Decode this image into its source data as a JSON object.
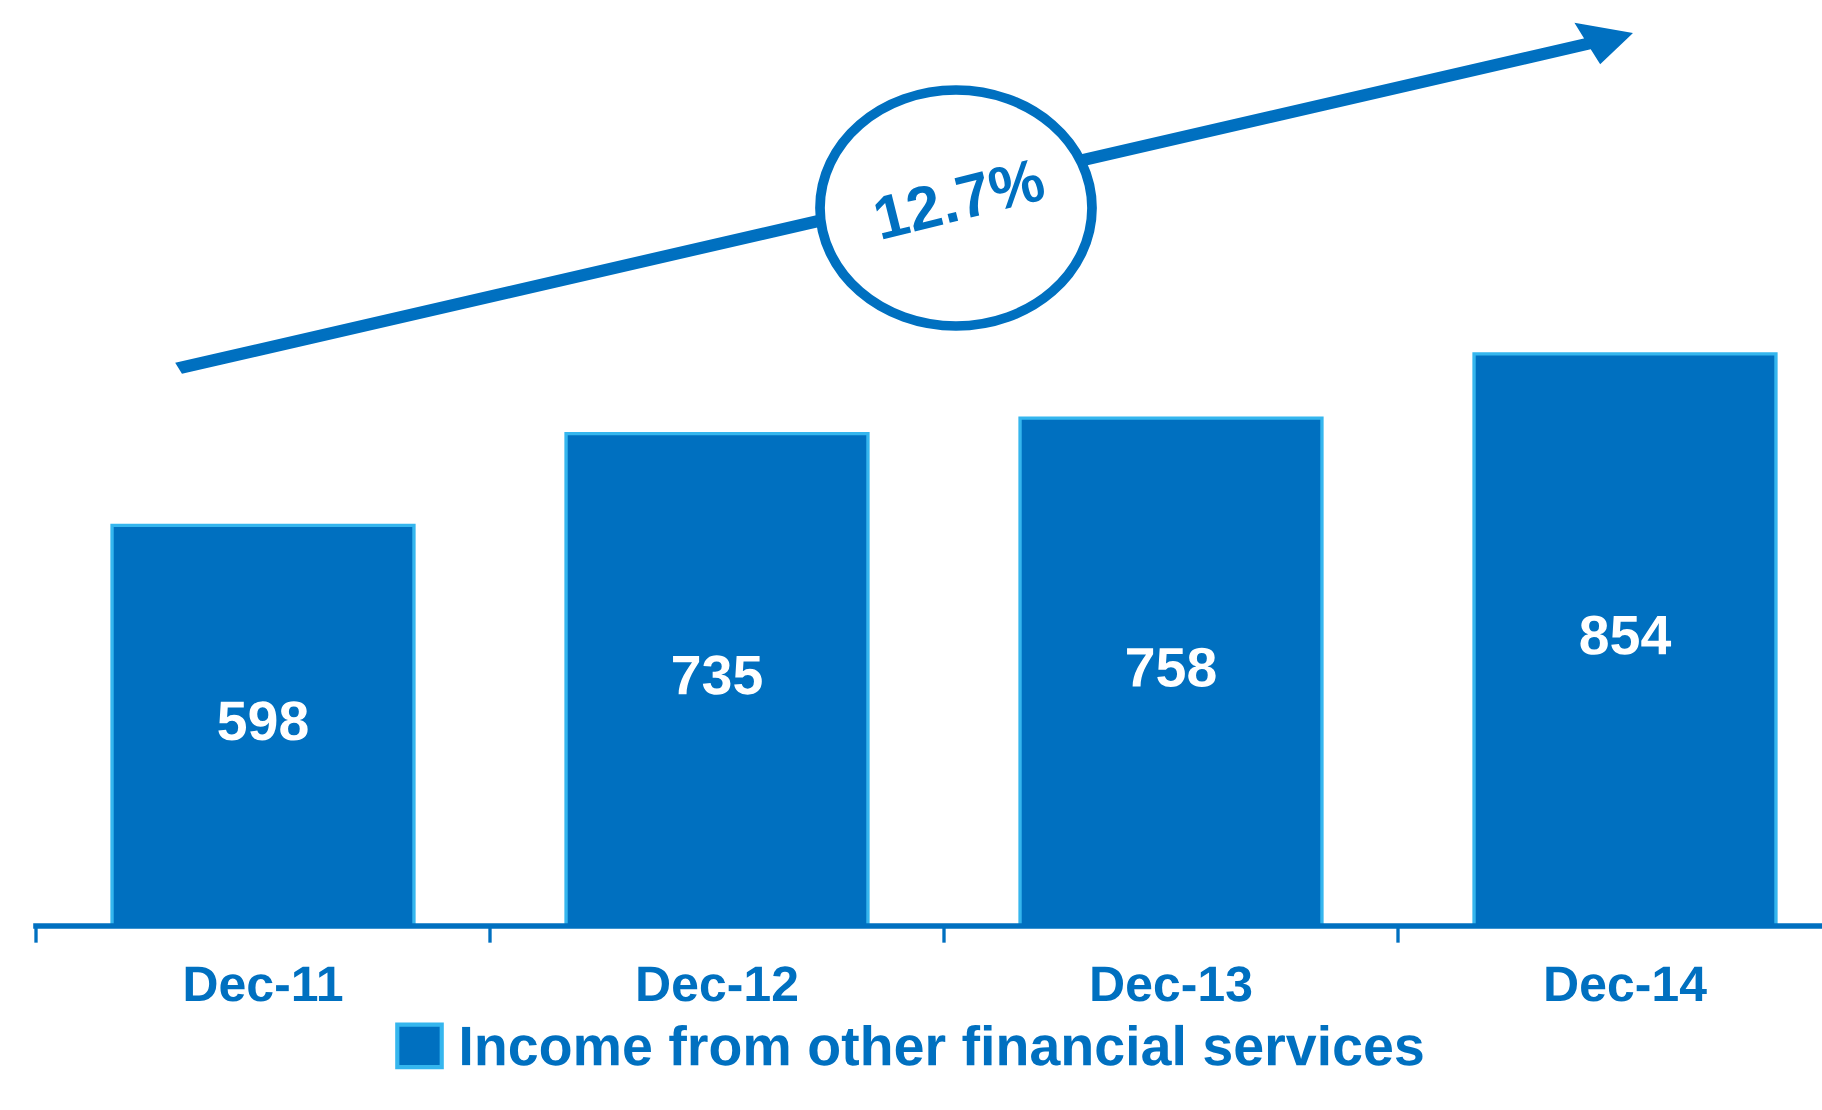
{
  "chart_data": {
    "type": "bar",
    "categories": [
      "Dec-11",
      "Dec-12",
      "Dec-13",
      "Dec-14"
    ],
    "series": [
      {
        "name": "Income from other financial services",
        "color": "#0070c0",
        "values": [
          598,
          735,
          758,
          854
        ]
      }
    ],
    "data_labels": true,
    "tick_labels": "x",
    "legend": "bottom",
    "grid": false,
    "annotations": [
      "12.7%"
    ]
  }
}
